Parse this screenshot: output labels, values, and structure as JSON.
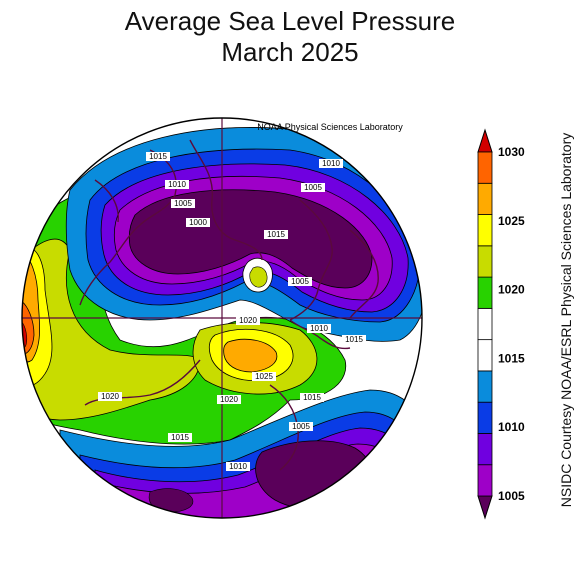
{
  "title_line1": "Average Sea Level Pressure",
  "title_line2": "March 2025",
  "map_source": "NOAA Physical Sciences Laboratory",
  "credit": "NSIDC Courtesy NOAA/ESRL Physical Sciences Laboratory",
  "colorbar": {
    "unit": "",
    "ticks": [
      "1005",
      "1010",
      "1015",
      "1020",
      "1025",
      "1030"
    ],
    "band_colors": [
      "#5a005a",
      "#9e00c8",
      "#7000e0",
      "#0a3ce6",
      "#0a8cdc",
      "#ffffff",
      "#ffffff",
      "#28d200",
      "#c8dc00",
      "#ffff00",
      "#ffaa00",
      "#ff6400",
      "#d20000"
    ]
  },
  "contour_labels": [
    {
      "text": "1015"
    },
    {
      "text": "1010"
    },
    {
      "text": "1005"
    },
    {
      "text": "1000"
    },
    {
      "text": "1010"
    },
    {
      "text": "1005"
    },
    {
      "text": "1015"
    },
    {
      "text": "1005"
    },
    {
      "text": "1020"
    },
    {
      "text": "1010"
    },
    {
      "text": "1015"
    },
    {
      "text": "1025"
    },
    {
      "text": "1020"
    },
    {
      "text": "1020"
    },
    {
      "text": "1015"
    },
    {
      "text": "1005"
    },
    {
      "text": "1015"
    },
    {
      "text": "1010"
    }
  ]
}
